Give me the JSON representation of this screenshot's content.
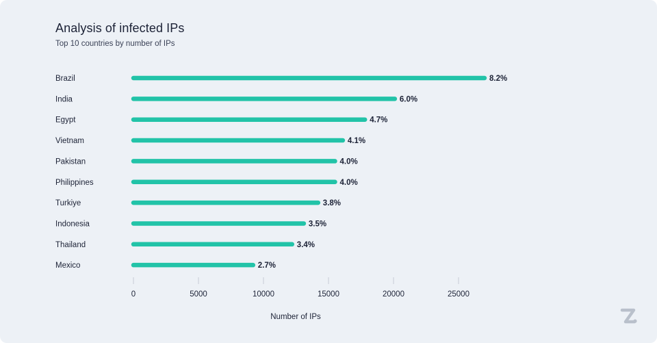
{
  "chart_data": {
    "type": "bar",
    "orientation": "horizontal",
    "title": "Analysis of infected IPs",
    "subtitle": "Top 10 countries by number of IPs",
    "xlabel": "Number of IPs",
    "ylabel": "",
    "xlim": [
      0,
      27500
    ],
    "xticks": [
      0,
      5000,
      10000,
      15000,
      20000,
      25000
    ],
    "xtick_labels": [
      "0",
      "5000",
      "10000",
      "15000",
      "20000",
      "25000"
    ],
    "categories": [
      "Brazil",
      "India",
      "Egypt",
      "Vietnam",
      "Pakistan",
      "Philippines",
      "Turkiye",
      "Indonesia",
      "Thailand",
      "Mexico"
    ],
    "values": [
      27000,
      20100,
      17800,
      16100,
      15500,
      15500,
      14200,
      13100,
      12200,
      9200
    ],
    "data_labels": [
      "8.2%",
      "6.0%",
      "4.7%",
      "4.1%",
      "4.0%",
      "4.0%",
      "3.8%",
      "3.5%",
      "3.4%",
      "2.7%"
    ],
    "bar_color": "#22c3a8",
    "grid": false
  },
  "logo": {
    "icon": "brand-logo-icon",
    "color": "#b9c0cb"
  }
}
